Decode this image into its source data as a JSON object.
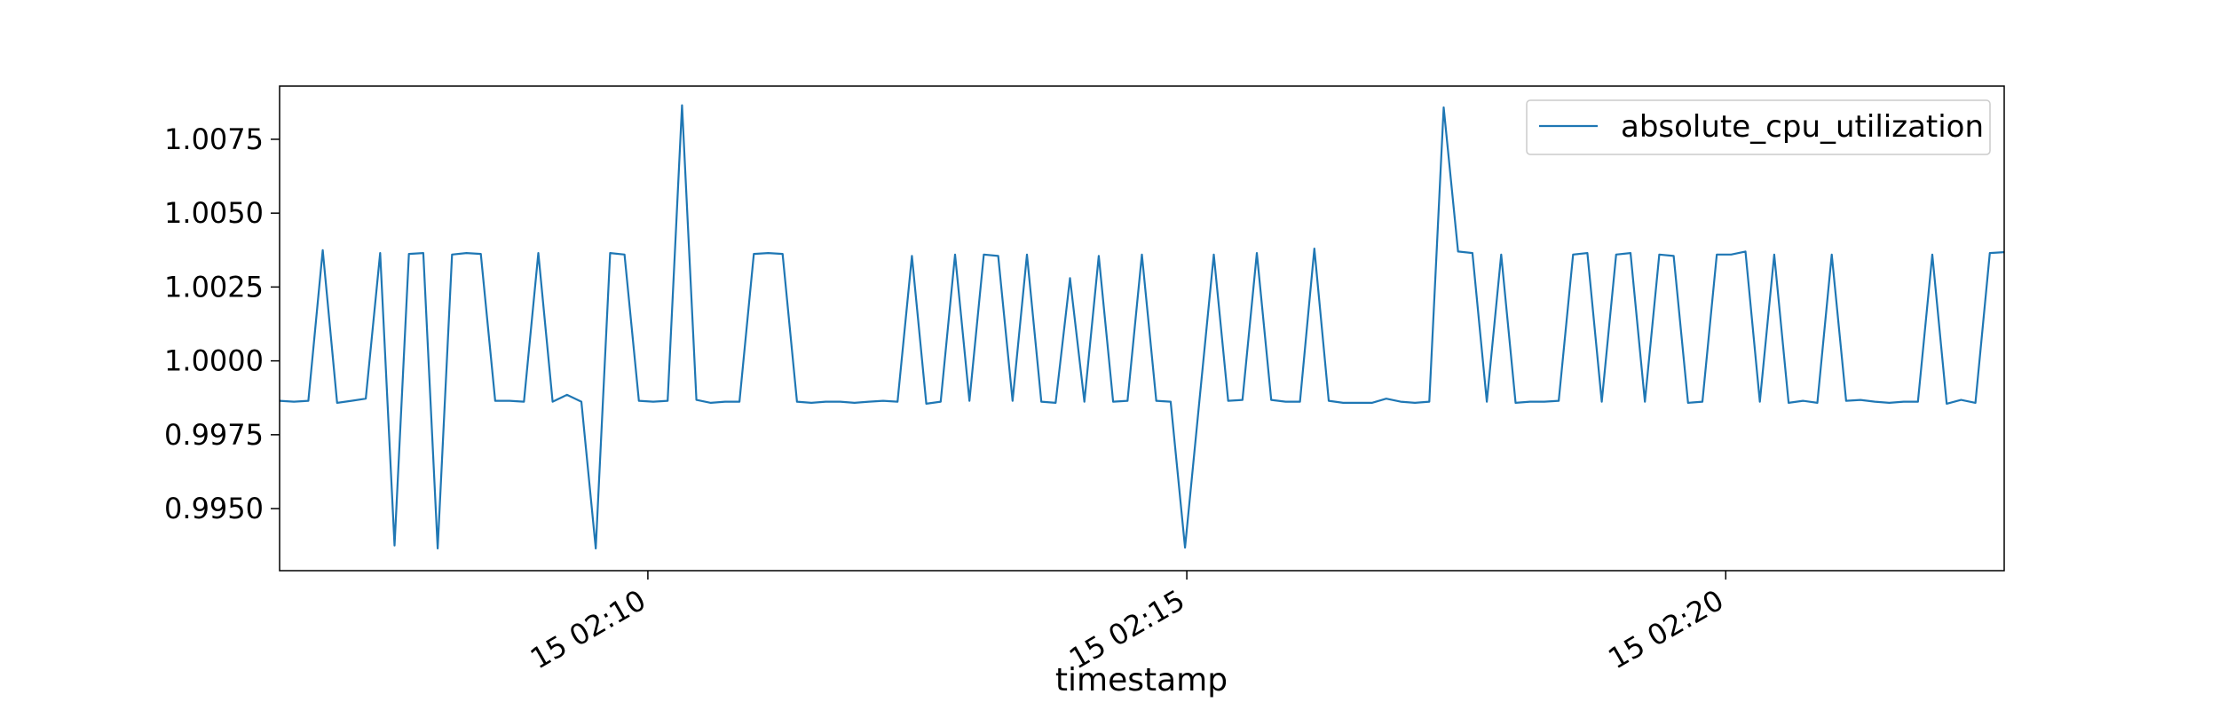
{
  "chart_data": {
    "type": "line",
    "title": "",
    "xlabel": "timestamp",
    "ylabel": "",
    "x_start": "15 02:06:35",
    "x_end": "15 02:22:35",
    "x_ticks": [
      {
        "time": "15 02:10",
        "label": "15 02:10"
      },
      {
        "time": "15 02:15",
        "label": "15 02:15"
      },
      {
        "time": "15 02:20",
        "label": "15 02:20"
      }
    ],
    "y_ticks": [
      0.995,
      0.9975,
      1.0,
      1.0025,
      1.005,
      1.0075
    ],
    "y_tick_labels": [
      "0.9950",
      "0.9975",
      "1.0000",
      "1.0025",
      "1.0050",
      "1.0075"
    ],
    "ylim": [
      0.9929,
      1.0093
    ],
    "grid": false,
    "legend": "top-right",
    "series": [
      {
        "name": "absolute_cpu_utilization",
        "color": "#1f77b4",
        "x": [
          "15 02:06:35",
          "15 02:06:43",
          "15 02:06:51",
          "15 02:06:59",
          "15 02:07:07",
          "15 02:07:15",
          "15 02:07:23",
          "15 02:07:31",
          "15 02:07:39",
          "15 02:07:47",
          "15 02:07:55",
          "15 02:08:03",
          "15 02:08:11",
          "15 02:08:19",
          "15 02:08:27",
          "15 02:08:35",
          "15 02:08:43",
          "15 02:08:51",
          "15 02:08:59",
          "15 02:09:07",
          "15 02:09:15",
          "15 02:09:23",
          "15 02:09:31",
          "15 02:09:39",
          "15 02:09:47",
          "15 02:09:55",
          "15 02:10:03",
          "15 02:10:11",
          "15 02:10:19",
          "15 02:10:27",
          "15 02:10:35",
          "15 02:10:43",
          "15 02:10:51",
          "15 02:10:59",
          "15 02:11:07",
          "15 02:11:15",
          "15 02:11:23",
          "15 02:11:31",
          "15 02:11:39",
          "15 02:11:47",
          "15 02:11:55",
          "15 02:12:03",
          "15 02:12:11",
          "15 02:12:19",
          "15 02:12:27",
          "15 02:12:35",
          "15 02:12:43",
          "15 02:12:51",
          "15 02:12:59",
          "15 02:13:07",
          "15 02:13:15",
          "15 02:13:23",
          "15 02:13:31",
          "15 02:13:39",
          "15 02:13:47",
          "15 02:13:55",
          "15 02:14:03",
          "15 02:14:11",
          "15 02:14:19",
          "15 02:14:27",
          "15 02:14:35",
          "15 02:14:43",
          "15 02:14:51",
          "15 02:14:59",
          "15 02:15:07",
          "15 02:15:15",
          "15 02:15:23",
          "15 02:15:31",
          "15 02:15:39",
          "15 02:15:47",
          "15 02:15:55",
          "15 02:16:03",
          "15 02:16:11",
          "15 02:16:19",
          "15 02:16:27",
          "15 02:16:35",
          "15 02:16:43",
          "15 02:16:51",
          "15 02:16:59",
          "15 02:17:07",
          "15 02:17:15",
          "15 02:17:23",
          "15 02:17:31",
          "15 02:17:39",
          "15 02:17:47",
          "15 02:17:55",
          "15 02:18:03",
          "15 02:18:11",
          "15 02:18:19",
          "15 02:18:27",
          "15 02:18:35",
          "15 02:18:43",
          "15 02:18:51",
          "15 02:18:59",
          "15 02:19:07",
          "15 02:19:15",
          "15 02:19:23",
          "15 02:19:31",
          "15 02:19:39",
          "15 02:19:47",
          "15 02:19:55",
          "15 02:20:03",
          "15 02:20:11",
          "15 02:20:19",
          "15 02:20:27",
          "15 02:20:35",
          "15 02:20:43",
          "15 02:20:51",
          "15 02:20:59",
          "15 02:21:07",
          "15 02:21:15",
          "15 02:21:23",
          "15 02:21:31",
          "15 02:21:39",
          "15 02:21:47",
          "15 02:21:55",
          "15 02:22:03",
          "15 02:22:11",
          "15 02:22:19",
          "15 02:22:27",
          "15 02:22:35"
        ],
        "values": [
          0.99865,
          0.99862,
          0.99865,
          1.00375,
          0.99858,
          0.99865,
          0.99872,
          1.00365,
          0.99375,
          1.00362,
          1.00365,
          0.99365,
          1.0036,
          1.00365,
          1.00362,
          0.99865,
          0.99865,
          0.99862,
          1.00365,
          0.99862,
          0.99885,
          0.99862,
          0.99365,
          1.00365,
          1.0036,
          0.99865,
          0.99862,
          0.99865,
          1.00865,
          0.99868,
          0.99858,
          0.99862,
          0.99862,
          1.00362,
          1.00365,
          1.00362,
          0.99862,
          0.99858,
          0.99862,
          0.99862,
          0.99858,
          0.99862,
          0.99865,
          0.99862,
          1.00355,
          0.99855,
          0.99862,
          1.0036,
          0.99865,
          1.0036,
          1.00355,
          0.99865,
          1.0036,
          0.99862,
          0.99858,
          1.0028,
          0.99862,
          1.00355,
          0.99862,
          0.99865,
          1.0036,
          0.99865,
          0.99862,
          0.99368,
          0.99865,
          1.0036,
          0.99865,
          0.99868,
          1.00365,
          0.99868,
          0.99862,
          0.99862,
          1.0038,
          0.99865,
          0.99858,
          0.99858,
          0.99858,
          0.99872,
          0.99862,
          0.99858,
          0.99862,
          1.00858,
          1.0037,
          1.00365,
          0.99862,
          1.0036,
          0.99858,
          0.99862,
          0.99862,
          0.99865,
          1.0036,
          1.00365,
          0.99862,
          1.0036,
          1.00365,
          0.99862,
          1.0036,
          1.00355,
          0.99858,
          0.99862,
          1.0036,
          1.0036,
          1.0037,
          0.99862,
          1.0036,
          0.99858,
          0.99865,
          0.99858,
          1.0036,
          0.99865,
          0.99868,
          0.99862,
          0.99858,
          0.99862,
          0.99862,
          1.0036,
          0.99855,
          0.99868,
          0.99858,
          1.00365,
          1.00368
        ]
      }
    ]
  }
}
